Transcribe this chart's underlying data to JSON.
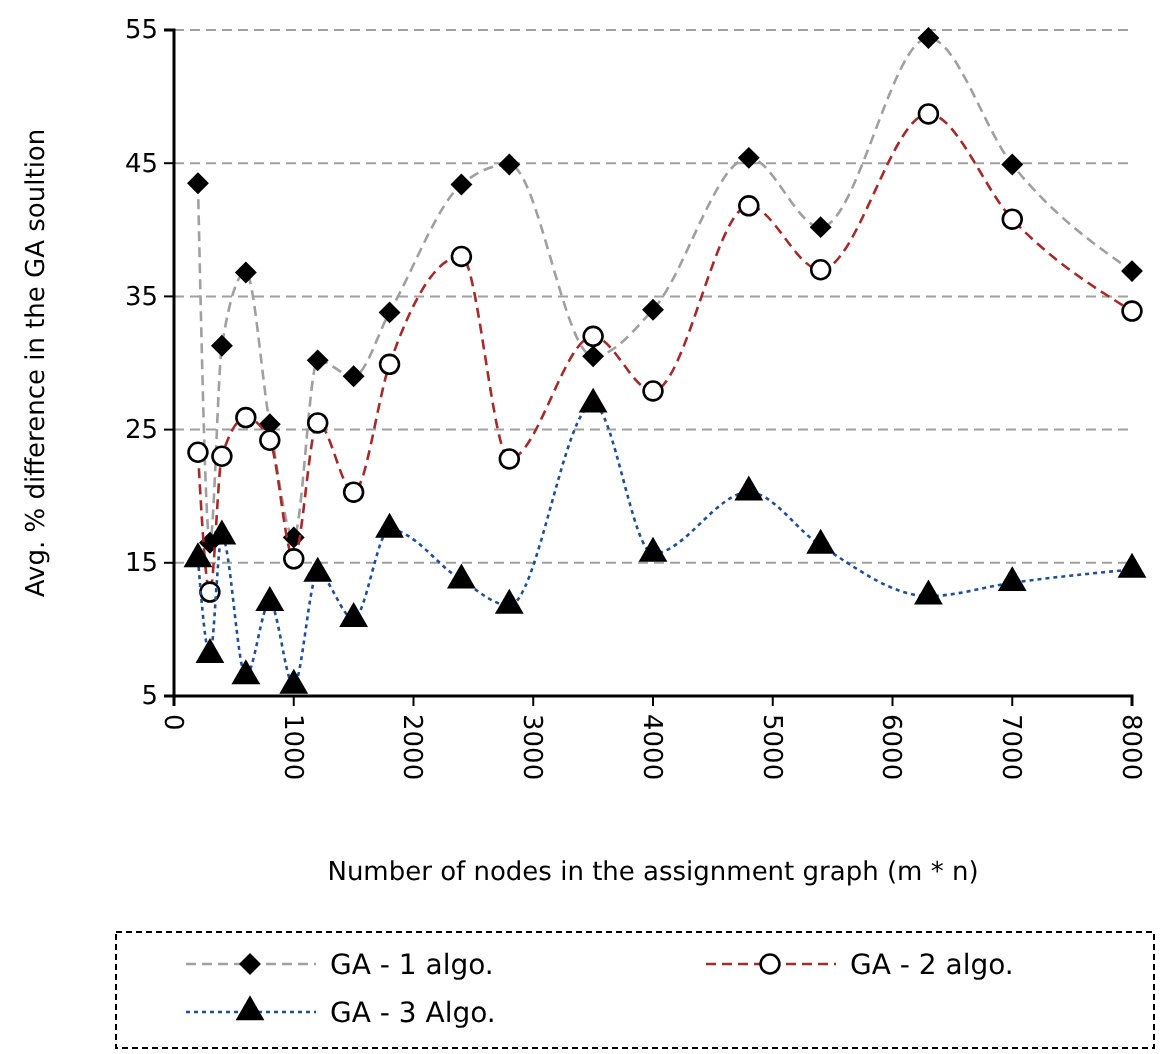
{
  "chart_data": {
    "type": "line",
    "xlabel": "Number of nodes in the assignment graph (m * n)",
    "ylabel": "Avg. % difference in the GA soultion",
    "x": [
      200,
      300,
      400,
      600,
      800,
      1000,
      1200,
      1500,
      1800,
      2400,
      2800,
      3500,
      4000,
      4800,
      5400,
      6300,
      7000,
      8000
    ],
    "series": [
      {
        "name": "GA - 1 algo.",
        "color": "#a0a0a0",
        "marker": "diamond",
        "line_style": "dashed",
        "values": [
          43.5,
          16.5,
          31.3,
          36.8,
          25.4,
          16.9,
          30.2,
          29.0,
          33.8,
          43.4,
          44.9,
          30.5,
          34.0,
          45.4,
          40.2,
          54.4,
          44.9,
          36.9
        ]
      },
      {
        "name": "GA - 2 algo.",
        "color": "#a52a2a",
        "marker": "circle",
        "line_style": "dashed",
        "values": [
          23.3,
          12.8,
          23.0,
          25.9,
          24.2,
          15.3,
          25.5,
          20.3,
          29.9,
          38.0,
          22.8,
          32.0,
          27.9,
          41.8,
          37.0,
          48.7,
          40.8,
          33.9
        ]
      },
      {
        "name": "GA - 3 Algo.",
        "color": "#1f4e9a",
        "marker": "triangle",
        "line_style": "dotted",
        "values": [
          15.3,
          8.1,
          17.0,
          6.5,
          12.0,
          5.8,
          14.2,
          10.8,
          17.5,
          13.7,
          11.8,
          26.9,
          15.7,
          20.3,
          16.3,
          12.5,
          13.5,
          14.5
        ]
      }
    ],
    "xlim": [
      0,
      8000
    ],
    "xticks": [
      0,
      1000,
      2000,
      3000,
      4000,
      5000,
      6000,
      7000,
      8000
    ],
    "ylim": [
      5,
      55
    ],
    "yticks": [
      5,
      15,
      25,
      35,
      45,
      55
    ],
    "grid": "y",
    "legend": "bottom"
  }
}
